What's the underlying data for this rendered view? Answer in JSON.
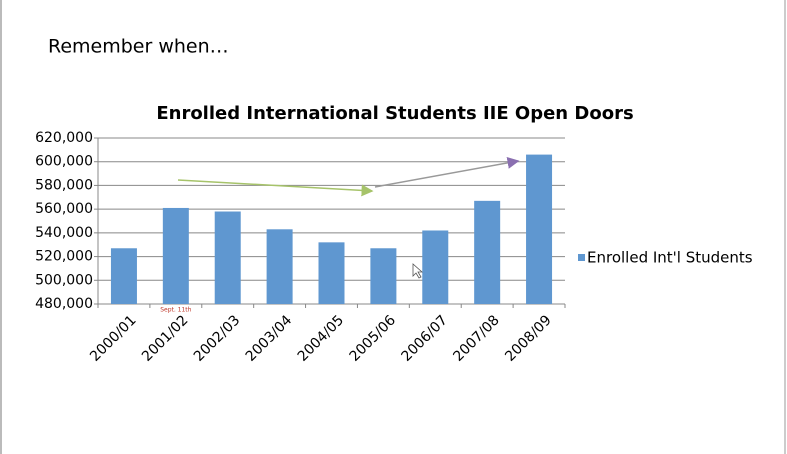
{
  "slide_title": "Remember when…",
  "chart_data": {
    "type": "bar",
    "title": "Enrolled International Students IIE Open Doors",
    "categories": [
      "2000/01",
      "2001/02",
      "2002/03",
      "2003/04",
      "2004/05",
      "2005/06",
      "2006/07",
      "2007/08",
      "2008/09"
    ],
    "series": [
      {
        "name": "Enrolled Int'l Students",
        "color": "#5f97d0",
        "values": [
          527000,
          561000,
          558000,
          543000,
          532000,
          527000,
          542000,
          567000,
          606000
        ]
      }
    ],
    "ylim": [
      480000,
      620000
    ],
    "yticks": [
      {
        "value": 480000,
        "label": "480,000"
      },
      {
        "value": 500000,
        "label": "500,000"
      },
      {
        "value": 520000,
        "label": "520,000"
      },
      {
        "value": 540000,
        "label": "540,000"
      },
      {
        "value": 560000,
        "label": "560,000"
      },
      {
        "value": 580000,
        "label": "580,000"
      },
      {
        "value": 600000,
        "label": "600,000"
      },
      {
        "value": 620000,
        "label": "620,000"
      }
    ],
    "grid": true,
    "legend": "right",
    "annotations": [
      "Sept. 11th"
    ]
  }
}
